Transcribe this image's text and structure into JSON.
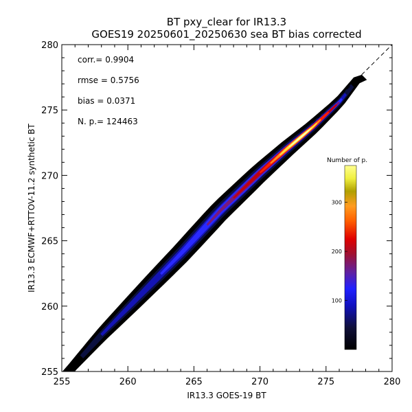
{
  "chart_data": {
    "type": "heatmap",
    "title": "BT pxy_clear for IR13.3",
    "subtitle": "GOES19 20250601_20250630 sea BT bias corrected",
    "xlabel": "IR13.3 GOES-19 BT",
    "ylabel": "IR13.3 ECMWF+RTTOV-11.2 synthetic BT",
    "xlim": [
      255,
      280
    ],
    "ylim": [
      255,
      280
    ],
    "x_ticks": [
      "255",
      "260",
      "265",
      "270",
      "275",
      "280"
    ],
    "y_ticks": [
      "255",
      "260",
      "265",
      "270",
      "275",
      "280"
    ],
    "grid": false,
    "one_to_one_line": true,
    "stats": [
      {
        "label": "corr.=",
        "value": "0.9904"
      },
      {
        "label": "rmse =",
        "value": "0.5756"
      },
      {
        "label": "bias =",
        "value": "0.0371"
      },
      {
        "label": "N. p.=",
        "value": "124463"
      }
    ],
    "density_ridge": {
      "x": [
        255.5,
        258,
        261,
        264,
        267,
        270,
        272,
        274,
        276,
        277.5
      ],
      "y": [
        255.0,
        257.8,
        260.9,
        264.0,
        267.3,
        270.2,
        272.0,
        273.7,
        275.6,
        277.5
      ],
      "counts": [
        5,
        12,
        30,
        60,
        110,
        220,
        330,
        350,
        200,
        15
      ]
    },
    "colorbar": {
      "title": "Number of p.",
      "ticks": [
        "100",
        "200",
        "300"
      ],
      "tick_values": [
        100,
        200,
        300
      ],
      "range": [
        0,
        375
      ]
    }
  }
}
